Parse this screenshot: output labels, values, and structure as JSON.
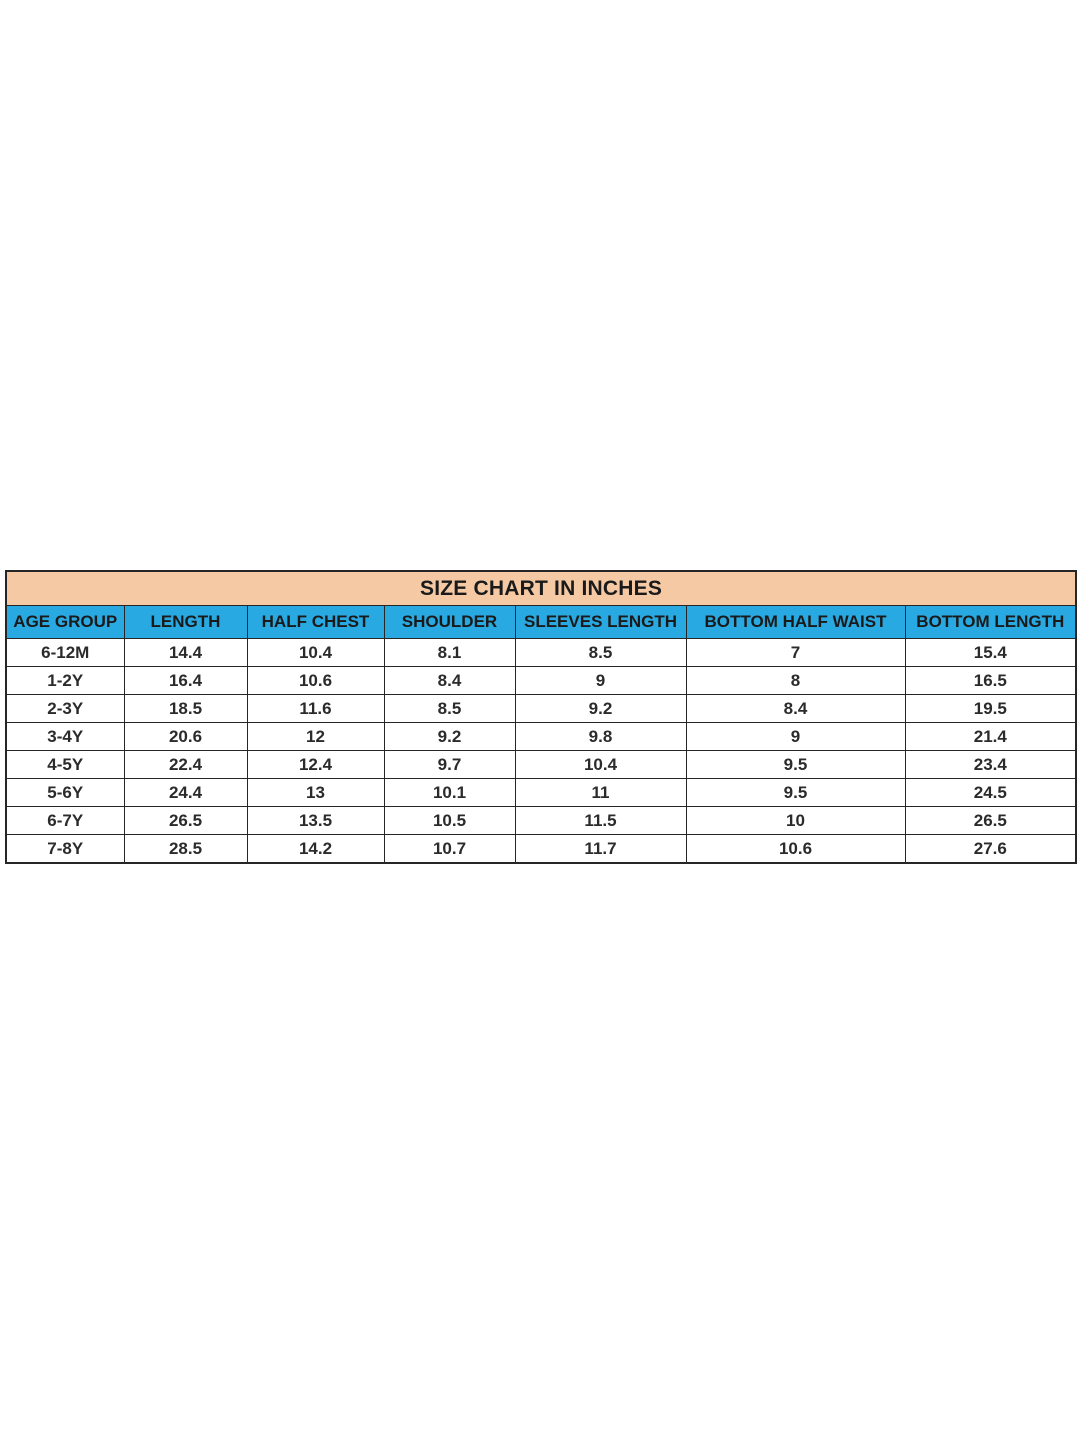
{
  "chart_data": {
    "type": "table",
    "title": "SIZE CHART IN INCHES",
    "columns": [
      "AGE GROUP",
      "LENGTH",
      "HALF CHEST",
      "SHOULDER",
      "SLEEVES LENGTH",
      "BOTTOM HALF WAIST",
      "BOTTOM LENGTH"
    ],
    "rows": [
      [
        "6-12M",
        "14.4",
        "10.4",
        "8.1",
        "8.5",
        "7",
        "15.4"
      ],
      [
        "1-2Y",
        "16.4",
        "10.6",
        "8.4",
        "9",
        "8",
        "16.5"
      ],
      [
        "2-3Y",
        "18.5",
        "11.6",
        "8.5",
        "9.2",
        "8.4",
        "19.5"
      ],
      [
        "3-4Y",
        "20.6",
        "12",
        "9.2",
        "9.8",
        "9",
        "21.4"
      ],
      [
        "4-5Y",
        "22.4",
        "12.4",
        "9.7",
        "10.4",
        "9.5",
        "23.4"
      ],
      [
        "5-6Y",
        "24.4",
        "13",
        "10.1",
        "11",
        "9.5",
        "24.5"
      ],
      [
        "6-7Y",
        "26.5",
        "13.5",
        "10.5",
        "11.5",
        "10",
        "26.5"
      ],
      [
        "7-8Y",
        "28.5",
        "14.2",
        "10.7",
        "11.7",
        "10.6",
        "27.6"
      ]
    ],
    "units": "inches",
    "layout": {
      "grid": true,
      "header_position": "top"
    },
    "colors": {
      "title_bg": "#f5c9a4",
      "header_bg": "#29a9e1",
      "border": "#262626",
      "text": "#1a1a1a",
      "page_bg": "#ffffff"
    }
  }
}
